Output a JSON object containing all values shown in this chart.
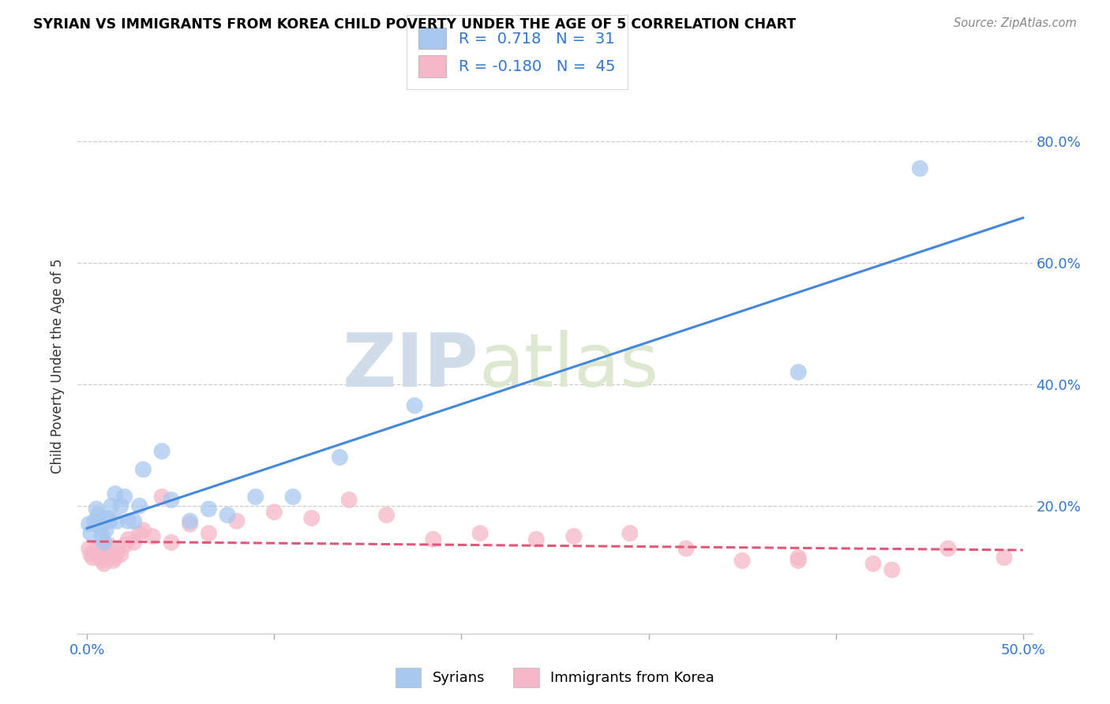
{
  "title": "SYRIAN VS IMMIGRANTS FROM KOREA CHILD POVERTY UNDER THE AGE OF 5 CORRELATION CHART",
  "source": "Source: ZipAtlas.com",
  "ylabel": "Child Poverty Under the Age of 5",
  "xlim": [
    -0.005,
    0.505
  ],
  "ylim": [
    -0.01,
    0.87
  ],
  "ytick_vals": [
    0.2,
    0.4,
    0.6,
    0.8
  ],
  "ytick_labels": [
    "20.0%",
    "40.0%",
    "60.0%",
    "80.0%"
  ],
  "xtick_show": [
    0.0,
    0.5
  ],
  "xtick_labels": [
    "0.0%",
    "50.0%"
  ],
  "watermark_zip": "ZIP",
  "watermark_atlas": "atlas",
  "syrian_color": "#a8c8f0",
  "korea_color": "#f5b8c8",
  "syrian_line_color": "#4488dd",
  "korea_line_color": "#e05878",
  "R_syrian": 0.718,
  "N_syrian": 31,
  "R_korea": -0.18,
  "N_korea": 45,
  "syrian_x": [
    0.001,
    0.002,
    0.004,
    0.005,
    0.006,
    0.007,
    0.008,
    0.009,
    0.01,
    0.011,
    0.012,
    0.013,
    0.015,
    0.016,
    0.018,
    0.02,
    0.022,
    0.025,
    0.028,
    0.03,
    0.04,
    0.045,
    0.055,
    0.065,
    0.075,
    0.09,
    0.11,
    0.135,
    0.175,
    0.38,
    0.445
  ],
  "syrian_y": [
    0.17,
    0.155,
    0.175,
    0.195,
    0.185,
    0.165,
    0.15,
    0.14,
    0.16,
    0.18,
    0.175,
    0.2,
    0.22,
    0.175,
    0.2,
    0.215,
    0.175,
    0.175,
    0.2,
    0.26,
    0.29,
    0.21,
    0.175,
    0.195,
    0.185,
    0.215,
    0.215,
    0.28,
    0.365,
    0.42,
    0.755
  ],
  "korea_x": [
    0.001,
    0.002,
    0.003,
    0.004,
    0.005,
    0.006,
    0.007,
    0.008,
    0.009,
    0.01,
    0.011,
    0.012,
    0.013,
    0.014,
    0.015,
    0.016,
    0.018,
    0.02,
    0.022,
    0.025,
    0.028,
    0.03,
    0.035,
    0.04,
    0.045,
    0.055,
    0.065,
    0.08,
    0.1,
    0.12,
    0.14,
    0.16,
    0.185,
    0.21,
    0.24,
    0.26,
    0.29,
    0.32,
    0.35,
    0.38,
    0.42,
    0.46,
    0.49,
    0.38,
    0.43
  ],
  "korea_y": [
    0.13,
    0.12,
    0.115,
    0.125,
    0.13,
    0.12,
    0.115,
    0.11,
    0.105,
    0.125,
    0.13,
    0.135,
    0.12,
    0.11,
    0.115,
    0.125,
    0.12,
    0.135,
    0.145,
    0.14,
    0.155,
    0.16,
    0.15,
    0.215,
    0.14,
    0.17,
    0.155,
    0.175,
    0.19,
    0.18,
    0.21,
    0.185,
    0.145,
    0.155,
    0.145,
    0.15,
    0.155,
    0.13,
    0.11,
    0.115,
    0.105,
    0.13,
    0.115,
    0.11,
    0.095
  ]
}
